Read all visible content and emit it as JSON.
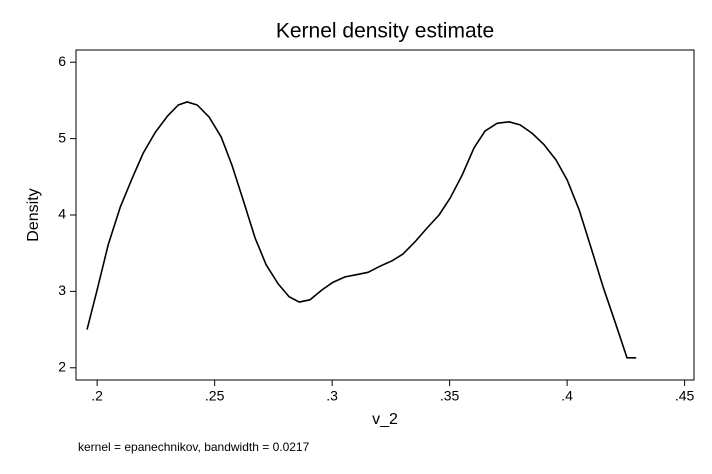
{
  "chart_data": {
    "type": "line",
    "title": "Kernel density estimate",
    "x_label": "v_2",
    "y_label": "Density",
    "note": "kernel = epanechnikov, bandwidth = 0.0217",
    "xlim": [
      0.191,
      0.454
    ],
    "ylim": [
      1.84,
      6.16
    ],
    "xticks": [
      {
        "value": 0.2,
        "label": ".2"
      },
      {
        "value": 0.25,
        "label": ".25"
      },
      {
        "value": 0.3,
        "label": ".3"
      },
      {
        "value": 0.35,
        "label": ".35"
      },
      {
        "value": 0.4,
        "label": ".4"
      },
      {
        "value": 0.45,
        "label": ".45"
      }
    ],
    "yticks": [
      2,
      3,
      4,
      5,
      6
    ],
    "grid": false,
    "series": [
      {
        "color": "#000000",
        "x": [
          0.1957,
          0.2,
          0.2047,
          0.2098,
          0.2149,
          0.2196,
          0.2247,
          0.2298,
          0.2345,
          0.2383,
          0.2426,
          0.2477,
          0.2528,
          0.2574,
          0.2621,
          0.2672,
          0.2719,
          0.277,
          0.2817,
          0.286,
          0.2906,
          0.2957,
          0.3004,
          0.3055,
          0.3106,
          0.3153,
          0.3204,
          0.3255,
          0.3302,
          0.3353,
          0.3404,
          0.3455,
          0.3502,
          0.3553,
          0.3604,
          0.3651,
          0.3702,
          0.3753,
          0.38,
          0.3851,
          0.3902,
          0.3953,
          0.4,
          0.4051,
          0.4102,
          0.4153,
          0.4204,
          0.4255,
          0.4294
        ],
        "values": [
          2.5,
          3.02,
          3.61,
          4.1,
          4.48,
          4.81,
          5.08,
          5.29,
          5.44,
          5.48,
          5.44,
          5.28,
          5.02,
          4.65,
          4.2,
          3.7,
          3.35,
          3.1,
          2.93,
          2.86,
          2.89,
          3.02,
          3.12,
          3.19,
          3.22,
          3.25,
          3.33,
          3.4,
          3.49,
          3.65,
          3.83,
          4.0,
          4.22,
          4.52,
          4.88,
          5.1,
          5.2,
          5.22,
          5.18,
          5.07,
          4.92,
          4.72,
          4.46,
          4.07,
          3.57,
          3.06,
          2.6,
          2.13,
          2.13
        ]
      }
    ]
  }
}
